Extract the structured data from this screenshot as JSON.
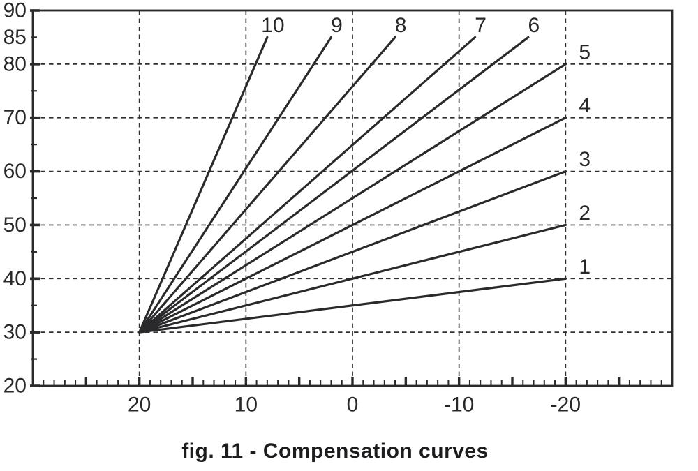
{
  "figure": {
    "caption": "fig. 11 - Compensation curves"
  },
  "style": {
    "background": "#ffffff",
    "line_color": "#2a2a2c",
    "grid_color": "#303032",
    "text_color": "#28282b"
  },
  "chart_data": {
    "type": "line",
    "title": "fig. 11 - Compensation curves",
    "xlabel": "",
    "ylabel": "",
    "description": "Fan of 10 heating compensation curves radiating from a common origin at (20, 30). X axis (external temperature) runs reversed from +30 on the left to -30 on the right; y axis (flow temperature) from 20 to 90.",
    "x_axis": {
      "domain": [
        30,
        -30
      ],
      "tick_labels": [
        20,
        10,
        0,
        -10,
        -20
      ],
      "minor_tick_step": 1,
      "medium_tick_step": 5,
      "gridlines": [
        20,
        10,
        0,
        -10,
        -20
      ]
    },
    "y_axis": {
      "domain": [
        90,
        20
      ],
      "tick_labels": [
        90,
        85,
        80,
        70,
        60,
        50,
        40,
        30,
        20
      ],
      "major_ticks": [
        90,
        80,
        70,
        60,
        50,
        40,
        30,
        20
      ],
      "minor_ticks": [
        85,
        75,
        65,
        55,
        45,
        35,
        25
      ],
      "gridlines": [
        80,
        70,
        60,
        50,
        40,
        30
      ]
    },
    "origin": [
      20,
      30
    ],
    "series": [
      {
        "name": "1",
        "points": [
          [
            20,
            30
          ],
          [
            -20,
            40
          ]
        ]
      },
      {
        "name": "2",
        "points": [
          [
            20,
            30
          ],
          [
            -20,
            50
          ]
        ]
      },
      {
        "name": "3",
        "points": [
          [
            20,
            30
          ],
          [
            -20,
            60
          ]
        ]
      },
      {
        "name": "4",
        "points": [
          [
            20,
            30
          ],
          [
            -20,
            70
          ]
        ]
      },
      {
        "name": "5",
        "points": [
          [
            20,
            30
          ],
          [
            -20,
            80
          ]
        ]
      },
      {
        "name": "6",
        "points": [
          [
            20,
            30
          ],
          [
            -16.5,
            85
          ]
        ]
      },
      {
        "name": "7",
        "points": [
          [
            20,
            30
          ],
          [
            -11.5,
            85
          ]
        ]
      },
      {
        "name": "8",
        "points": [
          [
            20,
            30
          ],
          [
            -4,
            85
          ]
        ]
      },
      {
        "name": "9",
        "points": [
          [
            20,
            30
          ],
          [
            2,
            85
          ]
        ]
      },
      {
        "name": "10",
        "points": [
          [
            20,
            30
          ],
          [
            8,
            85
          ]
        ]
      }
    ],
    "legend": "curve numbers 1-10 printed at the end of each line"
  }
}
